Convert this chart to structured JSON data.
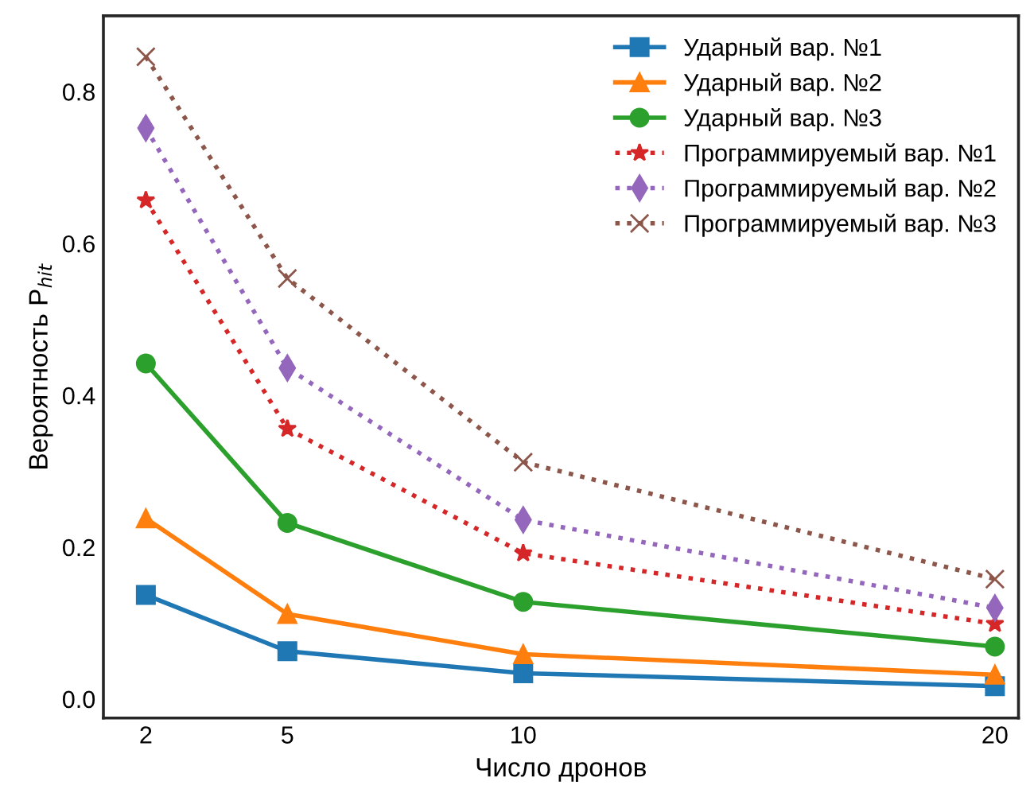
{
  "chart_data": {
    "type": "line",
    "xlabel": "Число дронов",
    "ylabel": "Вероятность P$_{hit}$",
    "x": [
      2,
      5,
      10,
      20
    ],
    "xlim": [
      1.1,
      20.5
    ],
    "xticks": [
      2,
      5,
      10,
      20
    ],
    "ylim": [
      -0.025,
      0.9
    ],
    "yticks": [
      {
        "value": 0,
        "label": "0.0"
      },
      0.2,
      0.4,
      0.6,
      0.8
    ],
    "grid": false,
    "legend": "top right",
    "series": [
      {
        "name": "Ударный вар. №1",
        "color": "#1f77b4",
        "marker": "square",
        "line_style": "solid",
        "values": [
          0.137,
          0.063,
          0.034,
          0.017
        ]
      },
      {
        "name": "Ударный вар. №2",
        "color": "#ff7f0e",
        "marker": "triangle",
        "line_style": "solid",
        "values": [
          0.238,
          0.112,
          0.059,
          0.032
        ]
      },
      {
        "name": "Ударный вар. №3",
        "color": "#2ca02c",
        "marker": "circle",
        "line_style": "solid",
        "values": [
          0.442,
          0.232,
          0.128,
          0.069
        ]
      },
      {
        "name": "Программируемый вар. №1",
        "color": "#d62728",
        "marker": "star",
        "line_style": "dotted",
        "values": [
          0.657,
          0.356,
          0.192,
          0.099
        ]
      },
      {
        "name": "Программируемый вар. №2",
        "color": "#9467bd",
        "marker": "diamond",
        "line_style": "dotted",
        "values": [
          0.752,
          0.436,
          0.236,
          0.12
        ]
      },
      {
        "name": "Программируемый вар. №3",
        "color": "#8c564b",
        "marker": "cross",
        "line_style": "dotted",
        "values": [
          0.846,
          0.554,
          0.312,
          0.158
        ]
      }
    ]
  }
}
